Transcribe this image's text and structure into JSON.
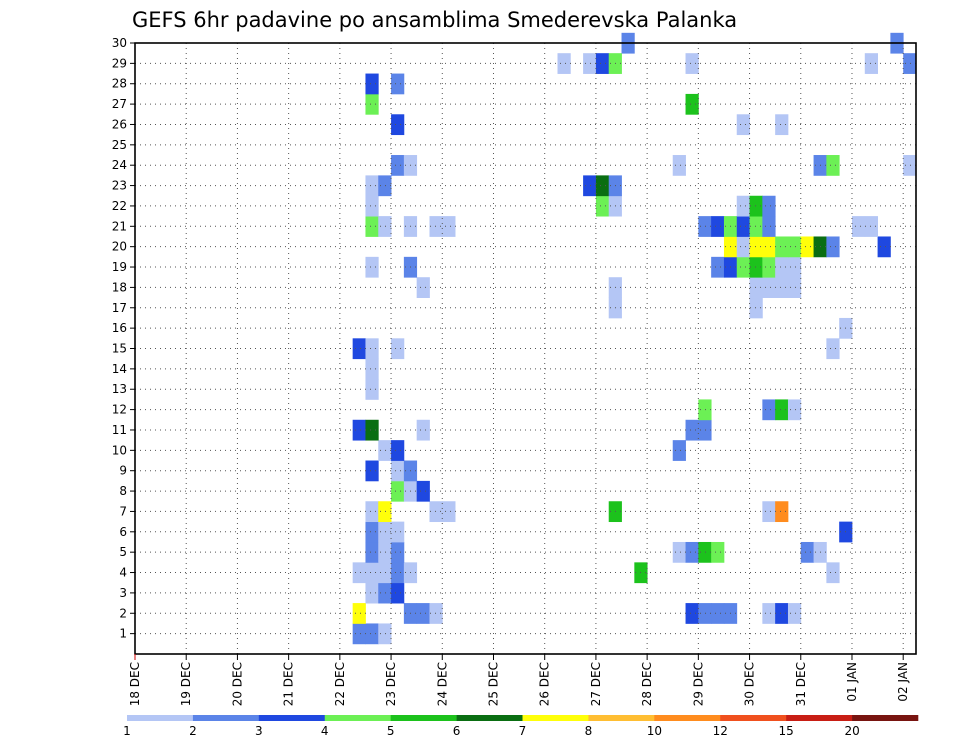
{
  "chart_data": {
    "type": "heatmap",
    "title": "GEFS 6hr padavine po ansamblima Smederevska Palanka",
    "x_axis": {
      "tick_labels": [
        "18 DEC",
        "19 DEC",
        "20 DEC",
        "21 DEC",
        "22 DEC",
        "23 DEC",
        "24 DEC",
        "25 DEC",
        "26 DEC",
        "27 DEC",
        "28 DEC",
        "29 DEC",
        "30 DEC",
        "31 DEC",
        "01 JAN",
        "02 JAN"
      ],
      "range_days": [
        0,
        15.25
      ],
      "step_hours": 6
    },
    "y_axis": {
      "tick_labels": [
        "1",
        "2",
        "3",
        "4",
        "5",
        "6",
        "7",
        "8",
        "9",
        "10",
        "11",
        "12",
        "13",
        "14",
        "15",
        "16",
        "17",
        "18",
        "19",
        "20",
        "21",
        "22",
        "23",
        "24",
        "25",
        "26",
        "27",
        "28",
        "29",
        "30"
      ],
      "range": [
        0,
        30
      ]
    },
    "grid": true,
    "legend": {
      "placement": "bottom",
      "tick_labels": [
        "1",
        "2",
        "3",
        "4",
        "5",
        "6",
        "7",
        "8",
        "10",
        "12",
        "15",
        "20"
      ],
      "colors": [
        "#b4c6f5",
        "#5b84e8",
        "#1f48e0",
        "#6cf055",
        "#1cc21c",
        "#0a6e12",
        "#ffff0a",
        "#ffbe32",
        "#ff8c1e",
        "#f0501e",
        "#c81e14",
        "#781410"
      ]
    },
    "cells": [
      [
        1,
        4.25,
        1
      ],
      [
        1,
        4.5,
        1
      ],
      [
        1,
        4.75,
        0
      ],
      [
        2,
        4.25,
        6
      ],
      [
        2,
        5.25,
        1
      ],
      [
        2,
        5.5,
        1
      ],
      [
        2,
        5.75,
        0
      ],
      [
        2,
        10.75,
        2
      ],
      [
        2,
        11,
        1
      ],
      [
        2,
        11.25,
        1
      ],
      [
        2,
        11.5,
        1
      ],
      [
        2,
        12.25,
        0
      ],
      [
        2,
        12.5,
        2
      ],
      [
        2,
        12.75,
        0
      ],
      [
        3,
        4.5,
        0
      ],
      [
        3,
        4.75,
        1
      ],
      [
        3,
        5,
        2
      ],
      [
        4,
        4.25,
        0
      ],
      [
        4,
        4.5,
        0
      ],
      [
        4,
        4.75,
        0
      ],
      [
        4,
        5,
        1
      ],
      [
        4,
        5.25,
        0
      ],
      [
        4,
        9.75,
        4
      ],
      [
        4,
        13.5,
        0
      ],
      [
        5,
        4.5,
        1
      ],
      [
        5,
        4.75,
        0
      ],
      [
        5,
        5,
        1
      ],
      [
        5,
        10.5,
        0
      ],
      [
        5,
        10.75,
        1
      ],
      [
        5,
        11,
        4
      ],
      [
        5,
        11.25,
        3
      ],
      [
        5,
        13,
        1
      ],
      [
        5,
        13.25,
        0
      ],
      [
        6,
        4.5,
        1
      ],
      [
        6,
        4.75,
        0
      ],
      [
        6,
        5,
        0
      ],
      [
        6,
        13.75,
        2
      ],
      [
        7,
        4.5,
        0
      ],
      [
        7,
        4.75,
        6
      ],
      [
        7,
        5.75,
        0
      ],
      [
        7,
        6,
        0
      ],
      [
        7,
        9.25,
        4
      ],
      [
        7,
        12.25,
        0
      ],
      [
        7,
        12.5,
        8
      ],
      [
        8,
        5,
        3
      ],
      [
        8,
        5.25,
        0
      ],
      [
        8,
        5.5,
        2
      ],
      [
        9,
        4.5,
        2
      ],
      [
        9,
        5,
        0
      ],
      [
        9,
        5.25,
        1
      ],
      [
        10,
        4.75,
        0
      ],
      [
        10,
        5,
        2
      ],
      [
        10,
        10.5,
        1
      ],
      [
        11,
        4.25,
        2
      ],
      [
        11,
        4.5,
        5
      ],
      [
        11,
        5.5,
        0
      ],
      [
        11,
        10.75,
        1
      ],
      [
        11,
        11,
        1
      ],
      [
        12,
        11,
        3
      ],
      [
        12,
        12.25,
        1
      ],
      [
        12,
        12.5,
        4
      ],
      [
        12,
        12.75,
        0
      ],
      [
        13,
        4.5,
        0
      ],
      [
        14,
        4.5,
        0
      ],
      [
        15,
        4.25,
        2
      ],
      [
        15,
        4.5,
        0
      ],
      [
        15,
        5,
        0
      ],
      [
        15,
        13.5,
        0
      ],
      [
        16,
        13.75,
        0
      ],
      [
        17,
        9.25,
        0
      ],
      [
        17,
        12,
        0
      ],
      [
        18,
        5.5,
        0
      ],
      [
        18,
        9.25,
        0
      ],
      [
        18,
        12,
        0
      ],
      [
        18,
        12.25,
        0
      ],
      [
        18,
        12.5,
        0
      ],
      [
        18,
        12.75,
        0
      ],
      [
        19,
        4.5,
        0
      ],
      [
        19,
        5.25,
        1
      ],
      [
        19,
        11.25,
        1
      ],
      [
        19,
        11.5,
        2
      ],
      [
        19,
        11.75,
        3
      ],
      [
        19,
        12,
        4
      ],
      [
        19,
        12.25,
        3
      ],
      [
        19,
        12.5,
        0
      ],
      [
        19,
        12.75,
        0
      ],
      [
        20,
        11.5,
        6
      ],
      [
        20,
        11.75,
        0
      ],
      [
        20,
        12,
        6
      ],
      [
        20,
        12.25,
        6
      ],
      [
        20,
        12.5,
        3
      ],
      [
        20,
        12.75,
        3
      ],
      [
        20,
        13,
        6
      ],
      [
        20,
        13.25,
        5
      ],
      [
        20,
        13.5,
        1
      ],
      [
        20,
        14.5,
        2
      ],
      [
        21,
        4.5,
        3
      ],
      [
        21,
        4.75,
        0
      ],
      [
        21,
        5.25,
        0
      ],
      [
        21,
        5.75,
        0
      ],
      [
        21,
        6,
        0
      ],
      [
        21,
        11,
        1
      ],
      [
        21,
        11.25,
        2
      ],
      [
        21,
        11.5,
        3
      ],
      [
        21,
        11.75,
        2
      ],
      [
        21,
        12,
        3
      ],
      [
        21,
        12.25,
        1
      ],
      [
        21,
        14,
        0
      ],
      [
        21,
        14.25,
        0
      ],
      [
        22,
        4.5,
        0
      ],
      [
        22,
        9,
        3
      ],
      [
        22,
        9.25,
        0
      ],
      [
        22,
        11.75,
        0
      ],
      [
        22,
        12,
        4
      ],
      [
        22,
        12.25,
        1
      ],
      [
        23,
        4.5,
        0
      ],
      [
        23,
        4.75,
        1
      ],
      [
        23,
        8.75,
        2
      ],
      [
        23,
        9,
        5
      ],
      [
        23,
        9.25,
        1
      ],
      [
        24,
        5,
        1
      ],
      [
        24,
        5.25,
        0
      ],
      [
        24,
        10.5,
        0
      ],
      [
        24,
        13.25,
        1
      ],
      [
        24,
        13.5,
        3
      ],
      [
        24,
        15,
        0
      ],
      [
        26,
        5,
        2
      ],
      [
        26,
        11.75,
        0
      ],
      [
        26,
        12.5,
        0
      ],
      [
        27,
        4.5,
        3
      ],
      [
        27,
        10.75,
        4
      ],
      [
        28,
        4.5,
        2
      ],
      [
        28,
        5,
        1
      ],
      [
        29,
        8.25,
        0
      ],
      [
        29,
        8.75,
        0
      ],
      [
        29,
        9,
        2
      ],
      [
        29,
        9.25,
        3
      ],
      [
        29,
        10.75,
        0
      ],
      [
        29,
        14.25,
        0
      ],
      [
        29,
        15,
        1
      ],
      [
        30,
        9.5,
        1
      ],
      [
        30,
        14.75,
        1
      ]
    ]
  }
}
